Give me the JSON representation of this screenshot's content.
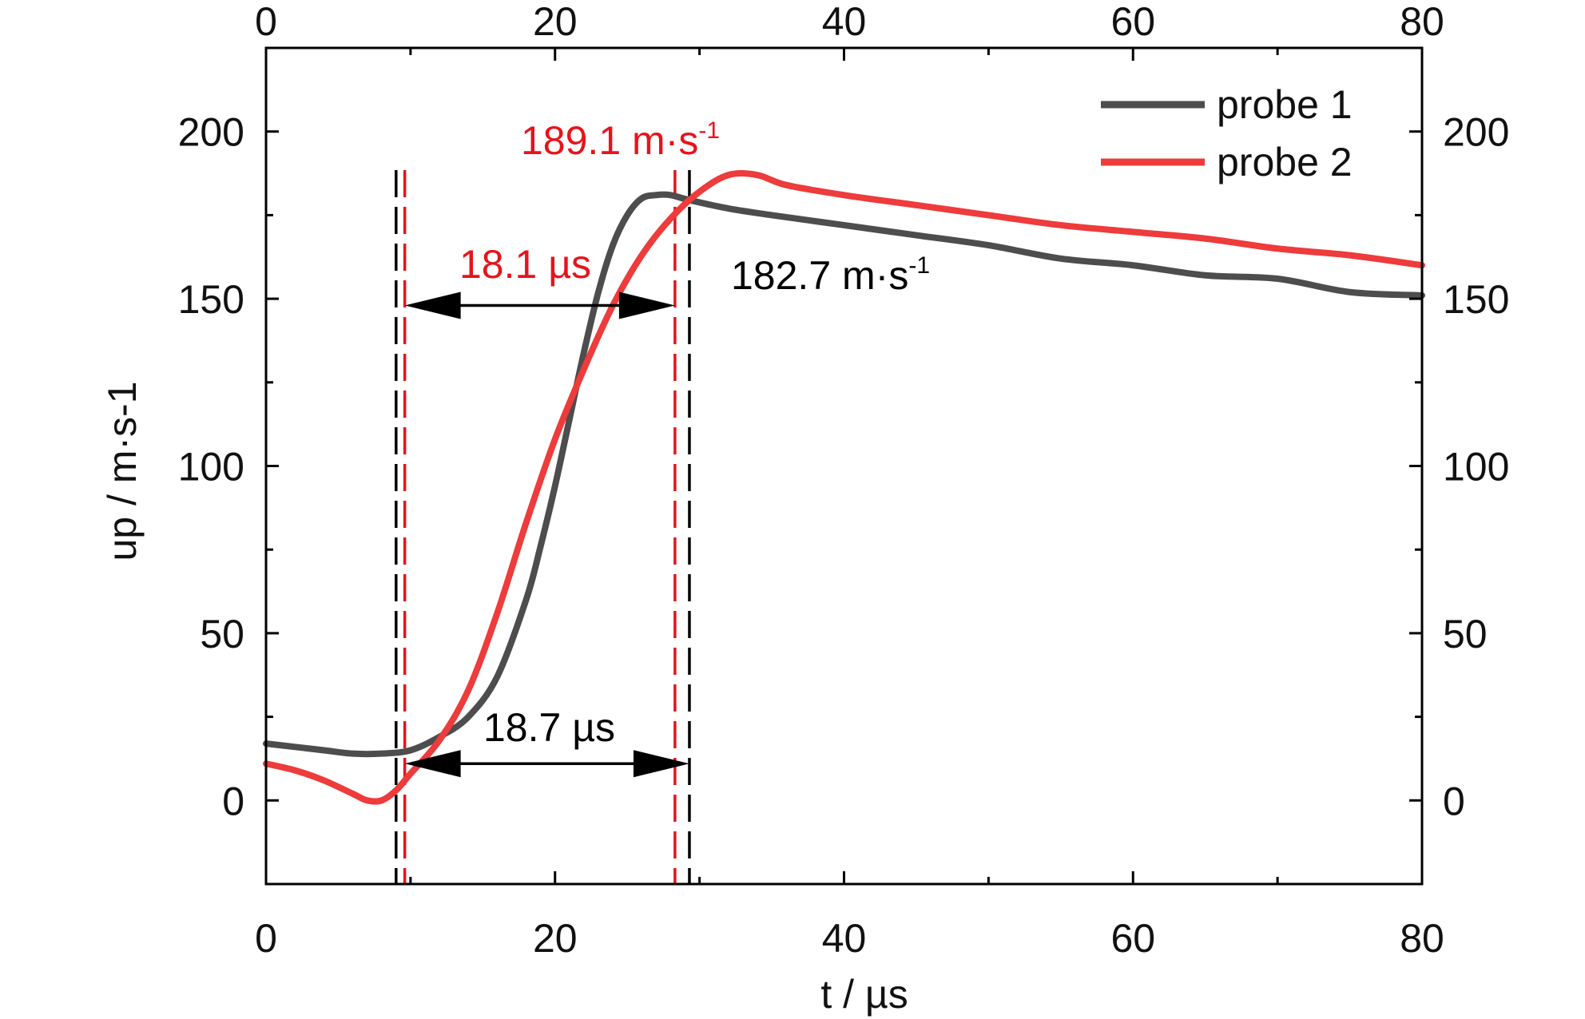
{
  "chart_data": {
    "type": "line",
    "xlabel": "t / µs",
    "ylabel": "up / m·s-1",
    "xlim": [
      0,
      80
    ],
    "ylim": [
      -25,
      225
    ],
    "x_ticks": [
      0,
      20,
      40,
      60,
      80
    ],
    "y_ticks": [
      0,
      50,
      100,
      150,
      200
    ],
    "grid": false,
    "legend_position": "top-right",
    "colors": {
      "probe1": "#4d4d4d",
      "probe2": "#ee3b3b",
      "annotation_black": "#000000",
      "annotation_red": "#e8131b"
    },
    "series": [
      {
        "name": "probe 1",
        "x": [
          0,
          2,
          4,
          6,
          8,
          10,
          12,
          14,
          16,
          18,
          19,
          20,
          21,
          22,
          23,
          24,
          25,
          26,
          27,
          28,
          29.3,
          32,
          35,
          40,
          45,
          50,
          55,
          60,
          65,
          70,
          75,
          80
        ],
        "y": [
          17,
          16,
          15,
          14,
          14,
          15,
          19,
          25,
          37,
          60,
          76,
          94,
          114,
          134,
          152,
          166,
          175,
          180,
          181,
          181,
          179.5,
          177,
          175,
          172,
          169,
          166,
          162,
          160,
          157,
          156,
          152,
          151
        ]
      },
      {
        "name": "probe 2",
        "x": [
          0,
          2,
          4,
          6,
          7,
          8,
          9,
          10,
          12,
          14,
          16,
          18,
          20,
          22,
          24,
          26,
          28,
          30,
          32,
          34,
          36,
          40,
          45,
          50,
          55,
          60,
          65,
          70,
          75,
          80
        ],
        "y": [
          11,
          9,
          6,
          2,
          0,
          0,
          3,
          8,
          18,
          33,
          56,
          83,
          108,
          129,
          148,
          163,
          174,
          182,
          187,
          187,
          184,
          181,
          178,
          175,
          172,
          170,
          168,
          165,
          163,
          160
        ]
      }
    ],
    "annotations": {
      "peak_probe1": "182.7 m·s-1",
      "peak_probe2": "189.1 m·s-1",
      "rise_probe1": "18.7 µs",
      "rise_probe2": "18.1 µs"
    },
    "markers": {
      "probe1_start": 9.0,
      "probe1_end": 29.3,
      "probe2_start": 9.6,
      "probe2_end": 28.3
    }
  }
}
